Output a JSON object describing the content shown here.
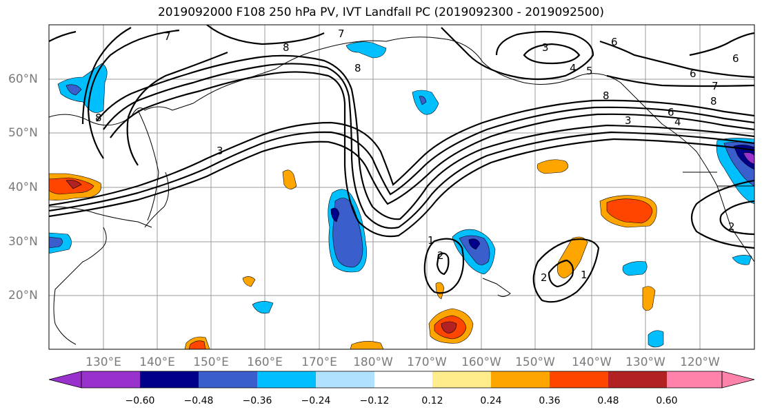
{
  "title": "2019092000 F108 250 hPa PV, IVT Landfall PC (2019092300 - 2019092500)",
  "lat_labels": [
    "60°N",
    "50°N",
    "40°N",
    "30°N",
    "20°N"
  ],
  "lon_labels": [
    "130°E",
    "140°E",
    "150°E",
    "160°E",
    "170°E",
    "180°W",
    "170°W",
    "160°W",
    "150°W",
    "140°W",
    "130°W",
    "120°W"
  ],
  "colorbar": {
    "ticks": [
      "−0.60",
      "−0.48",
      "−0.36",
      "−0.24",
      "−0.12",
      "0.12",
      "0.24",
      "0.36",
      "0.48",
      "0.60"
    ],
    "colors": [
      "#9932cc",
      "#00008b",
      "#3a5fcd",
      "#00bfff",
      "#b0e2ff",
      "#ffffff",
      "#ffec8b",
      "#ffa500",
      "#ff4500",
      "#b22222",
      "#ff82ab"
    ]
  },
  "contour_labels": [
    "7",
    "8",
    "7",
    "3",
    "6",
    "6",
    "6",
    "7",
    "8",
    "8",
    "4",
    "5",
    "8",
    "6",
    "4",
    "3",
    "8",
    "3",
    "1",
    "2",
    "2",
    "1",
    "2"
  ]
}
